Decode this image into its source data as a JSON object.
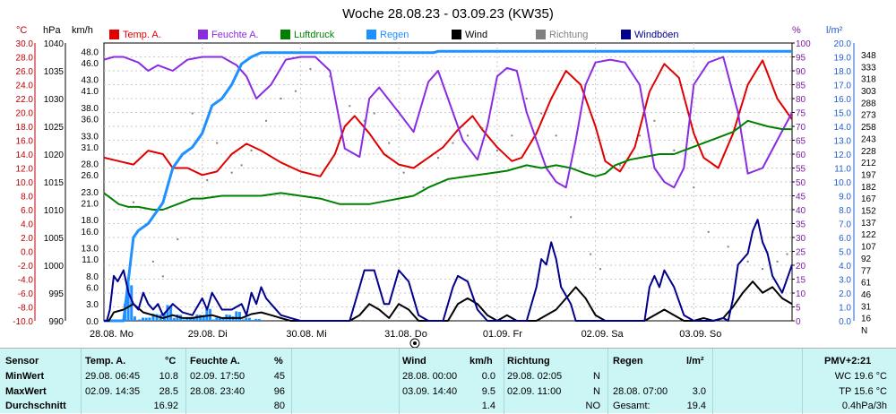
{
  "chart_data": {
    "type": "line",
    "title": "Woche 28.08.23 - 03.09.23 (KW35)",
    "axis_units": {
      "temp": "°C",
      "pressure": "hPa",
      "wind": "km/h",
      "humidity": "%",
      "rain": "l/m²"
    },
    "temp_ticks": [
      "30.0",
      "28.0",
      "26.0",
      "24.0",
      "22.0",
      "20.0",
      "18.0",
      "16.0",
      "14.0",
      "12.0",
      "10.0",
      "8.0",
      "6.0",
      "4.0",
      "2.0",
      "0.0",
      "-2.0",
      "-4.0",
      "-6.0",
      "-8.0",
      "-10.0"
    ],
    "pressure_ticks": [
      "1040",
      "1035",
      "1030",
      "1025",
      "1020",
      "1015",
      "1010",
      "1005",
      "1000",
      "995",
      "990"
    ],
    "wind_ticks": [
      "48.0",
      "46.0",
      "43.0",
      "41.0",
      "38.0",
      "36.0",
      "33.0",
      "31.0",
      "28.0",
      "26.0",
      "23.0",
      "21.0",
      "18.0",
      "16.0",
      "13.0",
      "11.0",
      "8.0",
      "6.0",
      "3.0",
      "0.0"
    ],
    "humidity_ticks": [
      "100",
      "95",
      "90",
      "85",
      "80",
      "75",
      "70",
      "65",
      "60",
      "55",
      "50",
      "45",
      "40",
      "35",
      "30",
      "25",
      "20",
      "15",
      "10",
      "5",
      "0"
    ],
    "rain_ticks": [
      "20.0",
      "19.0",
      "18.0",
      "17.0",
      "16.0",
      "15.0",
      "14.0",
      "13.0",
      "12.0",
      "11.0",
      "10.0",
      "9.0",
      "8.0",
      "7.0",
      "6.0",
      "5.0",
      "4.0",
      "3.0",
      "2.0",
      "1.0",
      "0.0"
    ],
    "direction_ticks": [
      "348",
      "333",
      "318",
      "303",
      "288",
      "273",
      "258",
      "243",
      "228",
      "212",
      "197",
      "182",
      "167",
      "152",
      "137",
      "122",
      "107",
      "92",
      "77",
      "61",
      "46",
      "31",
      "16",
      "N"
    ],
    "x_labels": [
      "28.08.  Mo",
      "29.08.  Di",
      "30.08.  Mi",
      "31.08.  Do",
      "01.09.  Fr",
      "02.09.  Sa",
      "03.09.  So"
    ],
    "legend": [
      {
        "name": "Temp. A.",
        "color": "#e00000"
      },
      {
        "name": "Feuchte A.",
        "color": "#8a2be2"
      },
      {
        "name": "Luftdruck",
        "color": "#008000"
      },
      {
        "name": "Regen",
        "color": "#1e90ff"
      },
      {
        "name": "Wind",
        "color": "#000000"
      },
      {
        "name": "Richtung",
        "color": "#808080"
      },
      {
        "name": "Windböen",
        "color": "#00008b"
      }
    ],
    "x_range": [
      0,
      7
    ],
    "temp_range": [
      -10,
      30
    ],
    "pressure_range": [
      990,
      1040
    ],
    "wind_range": [
      0,
      48
    ],
    "humidity_range": [
      0,
      100
    ],
    "rain_range": [
      0,
      20
    ],
    "series": [
      {
        "name": "Temp. A.",
        "axis": "temp",
        "color": "#e00000",
        "x": [
          0,
          0.15,
          0.3,
          0.45,
          0.6,
          0.7,
          0.85,
          1,
          1.15,
          1.3,
          1.45,
          1.6,
          1.8,
          2,
          2.2,
          2.35,
          2.45,
          2.55,
          2.7,
          2.85,
          3,
          3.15,
          3.3,
          3.45,
          3.6,
          3.75,
          3.85,
          4,
          4.15,
          4.25,
          4.4,
          4.55,
          4.7,
          4.85,
          5,
          5.1,
          5.25,
          5.4,
          5.55,
          5.7,
          5.85,
          6,
          6.1,
          6.25,
          6.4,
          6.55,
          6.7,
          6.85,
          7
        ],
        "values": [
          13.5,
          13,
          12.5,
          14.5,
          14,
          12,
          12,
          11,
          11.5,
          14,
          15.5,
          14.5,
          12.8,
          11.5,
          10.8,
          14,
          18,
          19.5,
          17,
          14,
          12.5,
          12,
          13.5,
          15,
          17.5,
          19.5,
          17.5,
          15,
          13,
          13.5,
          17,
          22,
          26,
          24,
          18,
          13,
          11.5,
          15,
          23,
          27,
          25,
          17,
          13.5,
          12,
          17,
          24,
          27.5,
          22,
          19
        ]
      },
      {
        "name": "Feuchte A.",
        "axis": "humidity",
        "color": "#8a2be2",
        "x": [
          0,
          0.1,
          0.2,
          0.35,
          0.45,
          0.55,
          0.7,
          0.85,
          1,
          1.2,
          1.35,
          1.45,
          1.55,
          1.7,
          1.85,
          2,
          2.15,
          2.3,
          2.45,
          2.6,
          2.7,
          2.8,
          3,
          3.15,
          3.3,
          3.4,
          3.5,
          3.65,
          3.8,
          3.9,
          4,
          4.1,
          4.2,
          4.3,
          4.5,
          4.6,
          4.7,
          4.8,
          4.9,
          5,
          5.15,
          5.3,
          5.45,
          5.6,
          5.7,
          5.8,
          5.9,
          6,
          6.15,
          6.3,
          6.45,
          6.55,
          6.7,
          6.85,
          7
        ],
        "values": [
          94,
          95,
          95,
          93,
          90,
          92,
          90,
          94,
          95,
          95,
          92,
          88,
          80,
          85,
          94,
          95,
          95,
          90,
          62,
          59,
          80,
          84,
          75,
          68,
          86,
          90,
          80,
          65,
          58,
          70,
          88,
          91,
          90,
          75,
          55,
          50,
          48,
          65,
          85,
          93,
          94,
          93,
          85,
          55,
          50,
          48,
          55,
          85,
          93,
          95,
          75,
          53,
          55,
          65,
          75
        ]
      },
      {
        "name": "Luftdruck",
        "axis": "pressure",
        "color": "#008000",
        "x": [
          0,
          0.15,
          0.25,
          0.35,
          0.5,
          0.6,
          0.75,
          0.9,
          1,
          1.2,
          1.4,
          1.6,
          1.8,
          2,
          2.2,
          2.4,
          2.55,
          2.7,
          2.85,
          3,
          3.15,
          3.3,
          3.5,
          3.7,
          3.9,
          4.1,
          4.3,
          4.45,
          4.6,
          4.75,
          4.9,
          5,
          5.1,
          5.2,
          5.35,
          5.5,
          5.65,
          5.8,
          5.95,
          6.1,
          6.25,
          6.4,
          6.55,
          6.75,
          6.9,
          7
        ],
        "values": [
          1013,
          1011,
          1010.5,
          1010.5,
          1010,
          1010,
          1011,
          1012,
          1012,
          1012.5,
          1012.5,
          1012.5,
          1013,
          1012.5,
          1012,
          1011,
          1011,
          1011,
          1011.5,
          1012,
          1012.5,
          1014,
          1015.5,
          1016,
          1016.5,
          1017,
          1018,
          1017.5,
          1018,
          1017.5,
          1016.5,
          1016,
          1016.5,
          1018,
          1019,
          1019.5,
          1020,
          1020,
          1021,
          1022,
          1023,
          1024,
          1026,
          1025,
          1024.5,
          1024.5
        ]
      },
      {
        "name": "Regen",
        "axis": "rain",
        "color": "#1e90ff",
        "x": [
          0,
          0.1,
          0.2,
          0.3,
          0.35,
          0.45,
          0.6,
          0.7,
          0.8,
          0.9,
          1,
          1.1,
          1.2,
          1.3,
          1.4,
          1.5,
          1.6,
          1.7,
          2,
          2.5,
          3,
          3.2,
          3.35,
          3.4,
          4,
          5,
          6,
          7
        ],
        "values": [
          0,
          0,
          0,
          6,
          6.5,
          7,
          8.5,
          11,
          12,
          12.5,
          13.5,
          15.5,
          16,
          17,
          18.5,
          19,
          19.3,
          19.3,
          19.3,
          19.3,
          19.3,
          19.3,
          19.3,
          19.4,
          19.4,
          19.4,
          19.4,
          19.4
        ]
      },
      {
        "name": "Wind",
        "axis": "wind",
        "color": "#000000",
        "x": [
          0,
          0.05,
          0.1,
          0.2,
          0.3,
          0.4,
          0.5,
          0.6,
          0.7,
          0.8,
          0.9,
          1,
          1.1,
          1.2,
          1.3,
          1.4,
          1.5,
          1.6,
          1.7,
          1.8,
          1.9,
          2,
          2.2,
          2.4,
          2.5,
          2.6,
          2.7,
          2.8,
          2.9,
          3,
          3.1,
          3.2,
          3.3,
          3.4,
          3.5,
          3.6,
          3.7,
          3.8,
          3.9,
          4,
          4.1,
          4.2,
          4.3,
          4.4,
          4.5,
          4.6,
          4.7,
          4.8,
          4.9,
          5,
          5.1,
          5.2,
          5.3,
          5.4,
          5.5,
          5.6,
          5.7,
          5.8,
          5.9,
          6,
          6.1,
          6.2,
          6.3,
          6.4,
          6.5,
          6.6,
          6.7,
          6.8,
          6.9,
          7
        ],
        "values": [
          0,
          0,
          1.5,
          2,
          3,
          1.5,
          1,
          0.5,
          1,
          0.5,
          0.5,
          0.8,
          1,
          0.5,
          0.5,
          0.5,
          1.2,
          1.5,
          1,
          0.5,
          0,
          0,
          0,
          0,
          0,
          1,
          3,
          2,
          0.5,
          3,
          2,
          0,
          0,
          0,
          0,
          3,
          4,
          3,
          1,
          0,
          1,
          0,
          0,
          0,
          1,
          2,
          4,
          6,
          4,
          1,
          0,
          0,
          0,
          0,
          0,
          1,
          2,
          1,
          0,
          0,
          0.5,
          0,
          0.5,
          2.5,
          5,
          7,
          5,
          6,
          4,
          3
        ]
      },
      {
        "name": "Windböen",
        "axis": "wind",
        "color": "#00008b",
        "x": [
          0,
          0.03,
          0.06,
          0.1,
          0.14,
          0.2,
          0.25,
          0.3,
          0.35,
          0.4,
          0.45,
          0.5,
          0.55,
          0.6,
          0.7,
          0.8,
          0.9,
          1,
          1.05,
          1.1,
          1.2,
          1.3,
          1.4,
          1.45,
          1.5,
          1.55,
          1.6,
          1.65,
          1.7,
          1.8,
          1.9,
          2,
          2.2,
          2.4,
          2.5,
          2.6,
          2.65,
          2.75,
          2.85,
          2.9,
          3,
          3.1,
          3.2,
          3.3,
          3.35,
          3.45,
          3.55,
          3.6,
          3.7,
          3.8,
          3.9,
          4,
          4.1,
          4.2,
          4.3,
          4.4,
          4.45,
          4.5,
          4.55,
          4.6,
          4.65,
          4.75,
          4.8,
          4.9,
          5,
          5.1,
          5.2,
          5.3,
          5.4,
          5.5,
          5.55,
          5.6,
          5.65,
          5.7,
          5.8,
          5.9,
          6,
          6.1,
          6.2,
          6.3,
          6.35,
          6.4,
          6.45,
          6.5,
          6.55,
          6.6,
          6.65,
          6.7,
          6.75,
          6.8,
          6.9,
          7
        ],
        "values": [
          0,
          0,
          2,
          8,
          7,
          9,
          5,
          3,
          2,
          5,
          3,
          2,
          3,
          1,
          3,
          1.5,
          1,
          4,
          2,
          5,
          2,
          2,
          3,
          1,
          5,
          3,
          6,
          4,
          3,
          1,
          0.5,
          0,
          0,
          0,
          0,
          6,
          9,
          9,
          3,
          3,
          9,
          7,
          1,
          0,
          0,
          0,
          6,
          8,
          7,
          2,
          0,
          0,
          0,
          0,
          0,
          6,
          11,
          10,
          14,
          11,
          6,
          3,
          0,
          0,
          0,
          0,
          0,
          0,
          0,
          0,
          6,
          8,
          6,
          9,
          6,
          1,
          0,
          0,
          0,
          0.5,
          0,
          4,
          10,
          11,
          12,
          16,
          18,
          14,
          12,
          8,
          5,
          10
        ]
      },
      {
        "name": "Richtung",
        "axis": "direction",
        "color": "#808080",
        "style": "dots",
        "x": [
          0.3,
          0.5,
          0.6,
          0.75,
          0.9,
          1.05,
          1.15,
          1.3,
          1.4,
          1.5,
          1.65,
          1.8,
          1.95,
          2.1,
          2.3,
          2.5,
          2.65,
          2.75,
          2.9,
          3.05,
          3.25,
          3.4,
          3.55,
          3.7,
          3.85,
          4,
          4.15,
          4.3,
          4.45,
          4.6,
          4.75,
          4.95,
          5.05,
          5.25,
          5.45,
          5.6,
          5.8,
          6,
          6.15,
          6.35,
          6.55,
          6.7,
          6.85,
          6.95
        ],
        "values": [
          160,
          80,
          60,
          110,
          280,
          190,
          240,
          200,
          210,
          230,
          270,
          300,
          310,
          340,
          330,
          290,
          270,
          280,
          240,
          200,
          180,
          220,
          240,
          250,
          260,
          230,
          250,
          300,
          280,
          250,
          140,
          90,
          70,
          210,
          250,
          270,
          230,
          180,
          120,
          100,
          80,
          70,
          80,
          90
        ]
      }
    ]
  },
  "sensors": {
    "header": {
      "sensor": "Sensor",
      "temp": "Temp. A.",
      "temp_unit": "°C",
      "humidity": "Feuchte A.",
      "humidity_unit": "%",
      "wind": "Wind",
      "wind_unit": "km/h",
      "direction": "Richtung",
      "rain": "Regen",
      "rain_unit": "l/m²",
      "pmv": "PMV+2:21"
    },
    "rows": [
      {
        "label": "MinWert",
        "temp_date": "29.08.  06:45",
        "temp_val": "10.8",
        "hum_date": "02.09.  17:50",
        "hum_val": "45",
        "wind_date": "28.08.  00:00",
        "wind_val": "0.0",
        "dir_date": "29.08.  02:05",
        "dir_val": "N",
        "rain_date": "",
        "rain_val": "",
        "pmv": "WC 19.6 °C"
      },
      {
        "label": "MaxWert",
        "temp_date": "02.09.  14:35",
        "temp_val": "28.5",
        "hum_date": "28.08.  23:40",
        "hum_val": "96",
        "wind_date": "03.09.  14:40",
        "wind_val": "9.5",
        "dir_date": "02.09.  11:00",
        "dir_val": "N",
        "rain_date": "28.08.  07:00",
        "rain_val": "3.0",
        "pmv": "TP 15.6 °C"
      },
      {
        "label": "Durchschnitt",
        "temp_date": "",
        "temp_val": "16.92",
        "hum_date": "",
        "hum_val": "80",
        "wind_date": "",
        "wind_val": "1.4",
        "dir_date": "",
        "dir_val": "NO",
        "rain_date": "Gesamt:",
        "rain_val": "19.4",
        "pmv": "0.4hPa/3h"
      }
    ]
  }
}
